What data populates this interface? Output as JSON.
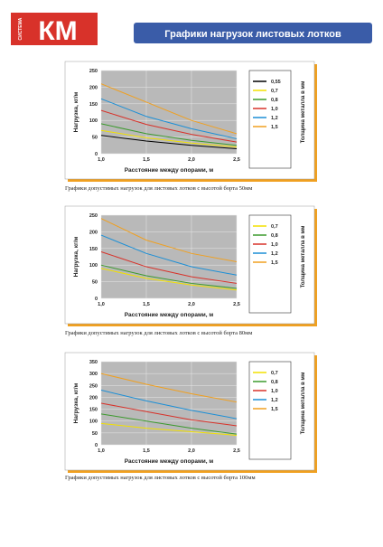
{
  "header": {
    "logo_small": "СИСТЕМА",
    "logo": "КМ",
    "title": "Графики нагрузок листовых лотков"
  },
  "captions": [
    "Графики допустимых нагрузок для листовых лотков с высотой борта 50мм",
    "Графики допустимых нагрузок для листовых лотков с высотой борта 80мм",
    "Графики допустимых нагрузок для листовых лотков с высотой борта 100мм"
  ],
  "chart_data": [
    {
      "type": "line",
      "x_label": "Расстояние между опорами, м",
      "y_label": "Нагрузка, кг/м",
      "legend_title": "Толщина металла в мм",
      "x": [
        1,
        1.5,
        2,
        2.5
      ],
      "xlim": [
        1,
        2.5
      ],
      "xticks": [
        {
          "value": 1,
          "label": "1,0"
        },
        {
          "value": 1.5,
          "label": "1,5"
        },
        {
          "value": 2,
          "label": "2,0"
        },
        {
          "value": 2.5,
          "label": "2,5"
        }
      ],
      "ylim": [
        0,
        250
      ],
      "yticks": [
        0,
        50,
        100,
        150,
        200,
        250
      ],
      "grid": true,
      "series": [
        {
          "name": "0,55",
          "color": "#000000",
          "values": [
            55,
            38,
            25,
            15
          ]
        },
        {
          "name": "0,7",
          "color": "#f2e000",
          "values": [
            70,
            48,
            32,
            20
          ]
        },
        {
          "name": "0,8",
          "color": "#3c9a2e",
          "values": [
            90,
            60,
            40,
            25
          ]
        },
        {
          "name": "1,0",
          "color": "#d8322a",
          "values": [
            130,
            88,
            58,
            35
          ]
        },
        {
          "name": "1,2",
          "color": "#1c8fd6",
          "values": [
            165,
            112,
            75,
            45
          ]
        },
        {
          "name": "1,5",
          "color": "#f0a020",
          "values": [
            210,
            155,
            100,
            60
          ]
        }
      ]
    },
    {
      "type": "line",
      "x_label": "Расстояние между опорами, м",
      "y_label": "Нагрузка, кг/м",
      "legend_title": "Толщина металла в мм",
      "x": [
        1,
        1.5,
        2,
        2.5
      ],
      "xlim": [
        1,
        2.5
      ],
      "xticks": [
        {
          "value": 1,
          "label": "1,0"
        },
        {
          "value": 1.5,
          "label": "1,5"
        },
        {
          "value": 2,
          "label": "2,0"
        },
        {
          "value": 2.5,
          "label": "2,5"
        }
      ],
      "ylim": [
        0,
        250
      ],
      "yticks": [
        0,
        50,
        100,
        150,
        200,
        250
      ],
      "grid": true,
      "series": [
        {
          "name": "0,7",
          "color": "#f2e000",
          "values": [
            90,
            60,
            40,
            25
          ]
        },
        {
          "name": "0,8",
          "color": "#3c9a2e",
          "values": [
            100,
            68,
            45,
            30
          ]
        },
        {
          "name": "1,0",
          "color": "#d8322a",
          "values": [
            140,
            95,
            65,
            45
          ]
        },
        {
          "name": "1,2",
          "color": "#1c8fd6",
          "values": [
            190,
            135,
            95,
            70
          ]
        },
        {
          "name": "1,5",
          "color": "#f0a020",
          "values": [
            240,
            175,
            135,
            110
          ]
        }
      ]
    },
    {
      "type": "line",
      "x_label": "Расстояние между опорами, м",
      "y_label": "Нагрузка, кг/м",
      "legend_title": "Толщина металла в мм",
      "x": [
        1,
        1.5,
        2,
        2.5
      ],
      "xlim": [
        1,
        2.5
      ],
      "xticks": [
        {
          "value": 1,
          "label": "1,0"
        },
        {
          "value": 1.5,
          "label": "1,5"
        },
        {
          "value": 2,
          "label": "2,0"
        },
        {
          "value": 2.5,
          "label": "2,5"
        }
      ],
      "ylim": [
        0,
        350
      ],
      "yticks": [
        0,
        50,
        100,
        150,
        200,
        250,
        300,
        350
      ],
      "grid": true,
      "series": [
        {
          "name": "0,7",
          "color": "#f2e000",
          "values": [
            90,
            70,
            55,
            40
          ]
        },
        {
          "name": "0,8",
          "color": "#3c9a2e",
          "values": [
            130,
            100,
            70,
            45
          ]
        },
        {
          "name": "1,0",
          "color": "#d8322a",
          "values": [
            175,
            140,
            105,
            80
          ]
        },
        {
          "name": "1,2",
          "color": "#1c8fd6",
          "values": [
            230,
            185,
            145,
            110
          ]
        },
        {
          "name": "1,5",
          "color": "#f0a020",
          "values": [
            300,
            255,
            215,
            180
          ]
        }
      ]
    }
  ]
}
